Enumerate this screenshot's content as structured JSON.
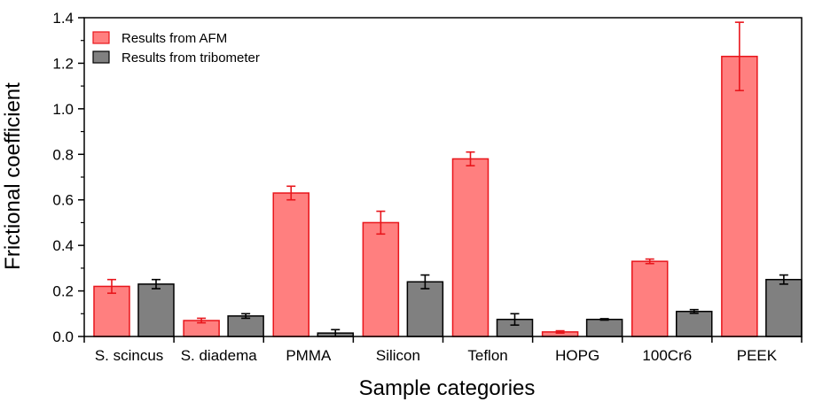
{
  "chart_data": {
    "type": "bar",
    "xlabel": "Sample categories",
    "ylabel": "Frictional coefficient",
    "ylim": [
      0,
      1.4
    ],
    "yticks": [
      "0.0",
      "0.2",
      "0.4",
      "0.6",
      "0.8",
      "1.0",
      "1.2",
      "1.4"
    ],
    "grid": false,
    "legend_position": "top-left",
    "categories": [
      "S. scincus",
      "S. diadema",
      "PMMA",
      "Silicon",
      "Teflon",
      "HOPG",
      "100Cr6",
      "PEEK"
    ],
    "series": [
      {
        "name": "Results from AFM",
        "color": "#ff7f7f",
        "edge_color": "#e8151b",
        "values": [
          0.22,
          0.07,
          0.63,
          0.5,
          0.78,
          0.02,
          0.33,
          1.23
        ],
        "errors": [
          0.03,
          0.01,
          0.03,
          0.05,
          0.03,
          0.005,
          0.01,
          0.15
        ]
      },
      {
        "name": "Results from tribometer",
        "color": "#808080",
        "edge_color": "#000000",
        "values": [
          0.23,
          0.09,
          0.015,
          0.24,
          0.075,
          0.075,
          0.11,
          0.25
        ],
        "errors": [
          0.02,
          0.01,
          0.015,
          0.03,
          0.025,
          0.003,
          0.008,
          0.02
        ]
      }
    ]
  }
}
